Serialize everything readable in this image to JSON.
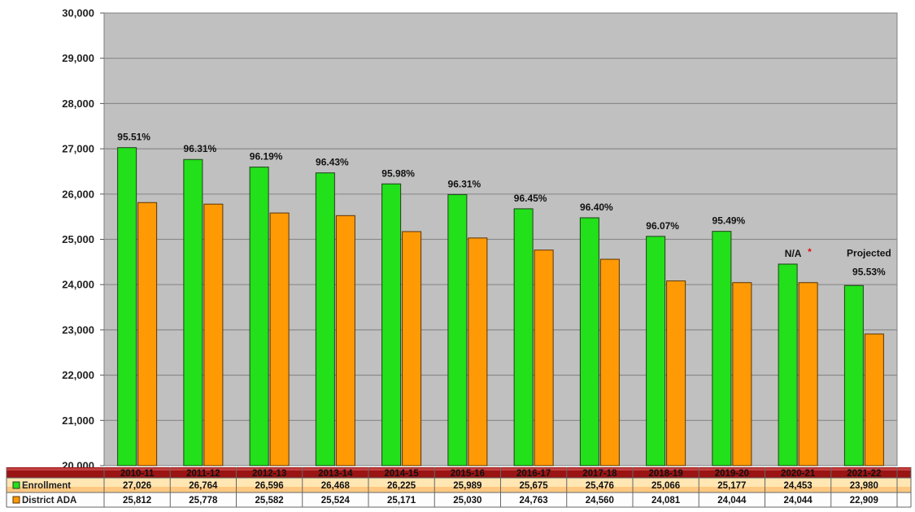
{
  "chart_data": {
    "type": "bar",
    "ylim": [
      20000,
      30000
    ],
    "yticks": [
      "30,000",
      "29,000",
      "28,000",
      "27,000",
      "26,000",
      "25,000",
      "24,000",
      "23,000",
      "22,000",
      "21,000",
      "20,000"
    ],
    "ytick_values": [
      30000,
      29000,
      28000,
      27000,
      26000,
      25000,
      24000,
      23000,
      22000,
      21000,
      20000
    ],
    "grid": true,
    "categories": [
      "2010-11",
      "2011-12",
      "2012-13",
      "2013-14",
      "2014-15",
      "2015-16",
      "2016-17",
      "2017-18",
      "2018-19",
      "2019-20",
      "2020-21",
      "2021-22"
    ],
    "series": [
      {
        "name": "Enrollment",
        "color": "#22e01a",
        "values": [
          27026,
          26764,
          26596,
          26468,
          26225,
          25989,
          25675,
          25476,
          25066,
          25177,
          24453,
          23980
        ],
        "labels": [
          "27,026",
          "26,764",
          "26,596",
          "26,468",
          "26,225",
          "25,989",
          "25,675",
          "25,476",
          "25,066",
          "25,177",
          "24,453",
          "23,980"
        ]
      },
      {
        "name": "District ADA",
        "color": "#ff9a05",
        "values": [
          25812,
          25778,
          25582,
          25524,
          25171,
          25030,
          24763,
          24560,
          24081,
          24044,
          24044,
          22909
        ],
        "labels": [
          "25,812",
          "25,778",
          "25,582",
          "25,524",
          "25,171",
          "25,030",
          "24,763",
          "24,560",
          "24,081",
          "24,044",
          "24,044",
          "22,909"
        ]
      }
    ],
    "annotations": [
      "95.51%",
      "96.31%",
      "96.19%",
      "96.43%",
      "95.98%",
      "96.31%",
      "96.45%",
      "96.40%",
      "96.07%",
      "95.49%",
      "N/A",
      "95.53%"
    ],
    "annotation_extra": {
      "asterisk": "*",
      "projected": "Projected"
    },
    "plot_background": "#c0c0c0",
    "table_header_color": "#9a1414"
  }
}
